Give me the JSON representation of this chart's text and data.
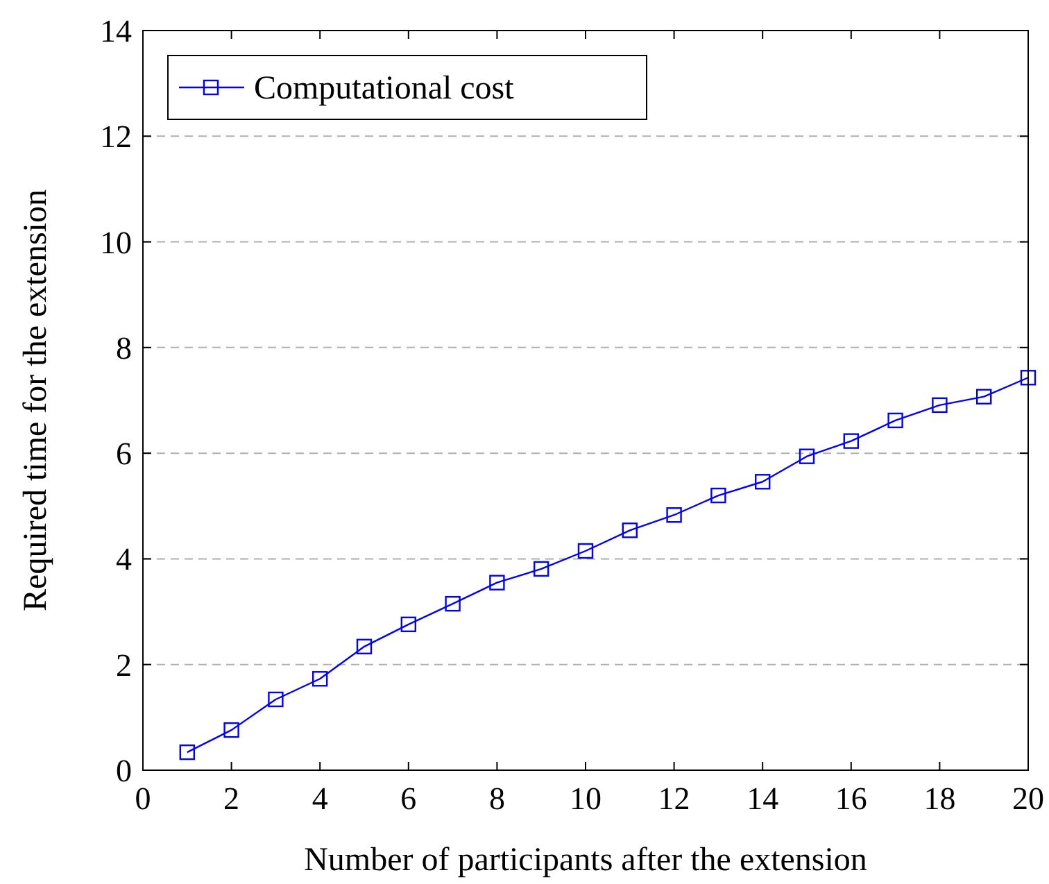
{
  "chart_data": {
    "type": "line",
    "xlabel": "Number of participants after the extension",
    "ylabel": "Required time for the extension",
    "x": [
      1,
      2,
      3,
      4,
      5,
      6,
      7,
      8,
      9,
      10,
      11,
      12,
      13,
      14,
      15,
      16,
      17,
      18,
      19,
      20
    ],
    "series": [
      {
        "name": "Computational cost",
        "color": "#0000ff",
        "values": [
          0.34,
          0.76,
          1.34,
          1.73,
          2.34,
          2.76,
          3.15,
          3.55,
          3.81,
          4.15,
          4.54,
          4.83,
          5.2,
          5.46,
          5.94,
          6.23,
          6.62,
          6.91,
          7.07,
          7.43
        ]
      }
    ],
    "xlim": [
      0,
      20
    ],
    "xticks": [
      0,
      2,
      4,
      6,
      8,
      10,
      12,
      14,
      16,
      18,
      20
    ],
    "ylim": [
      0,
      14
    ],
    "yticks": [
      0,
      2,
      4,
      6,
      8,
      10,
      12,
      14
    ],
    "grid": "y",
    "legend": "top left",
    "marker": "square",
    "line_style": "solid"
  }
}
